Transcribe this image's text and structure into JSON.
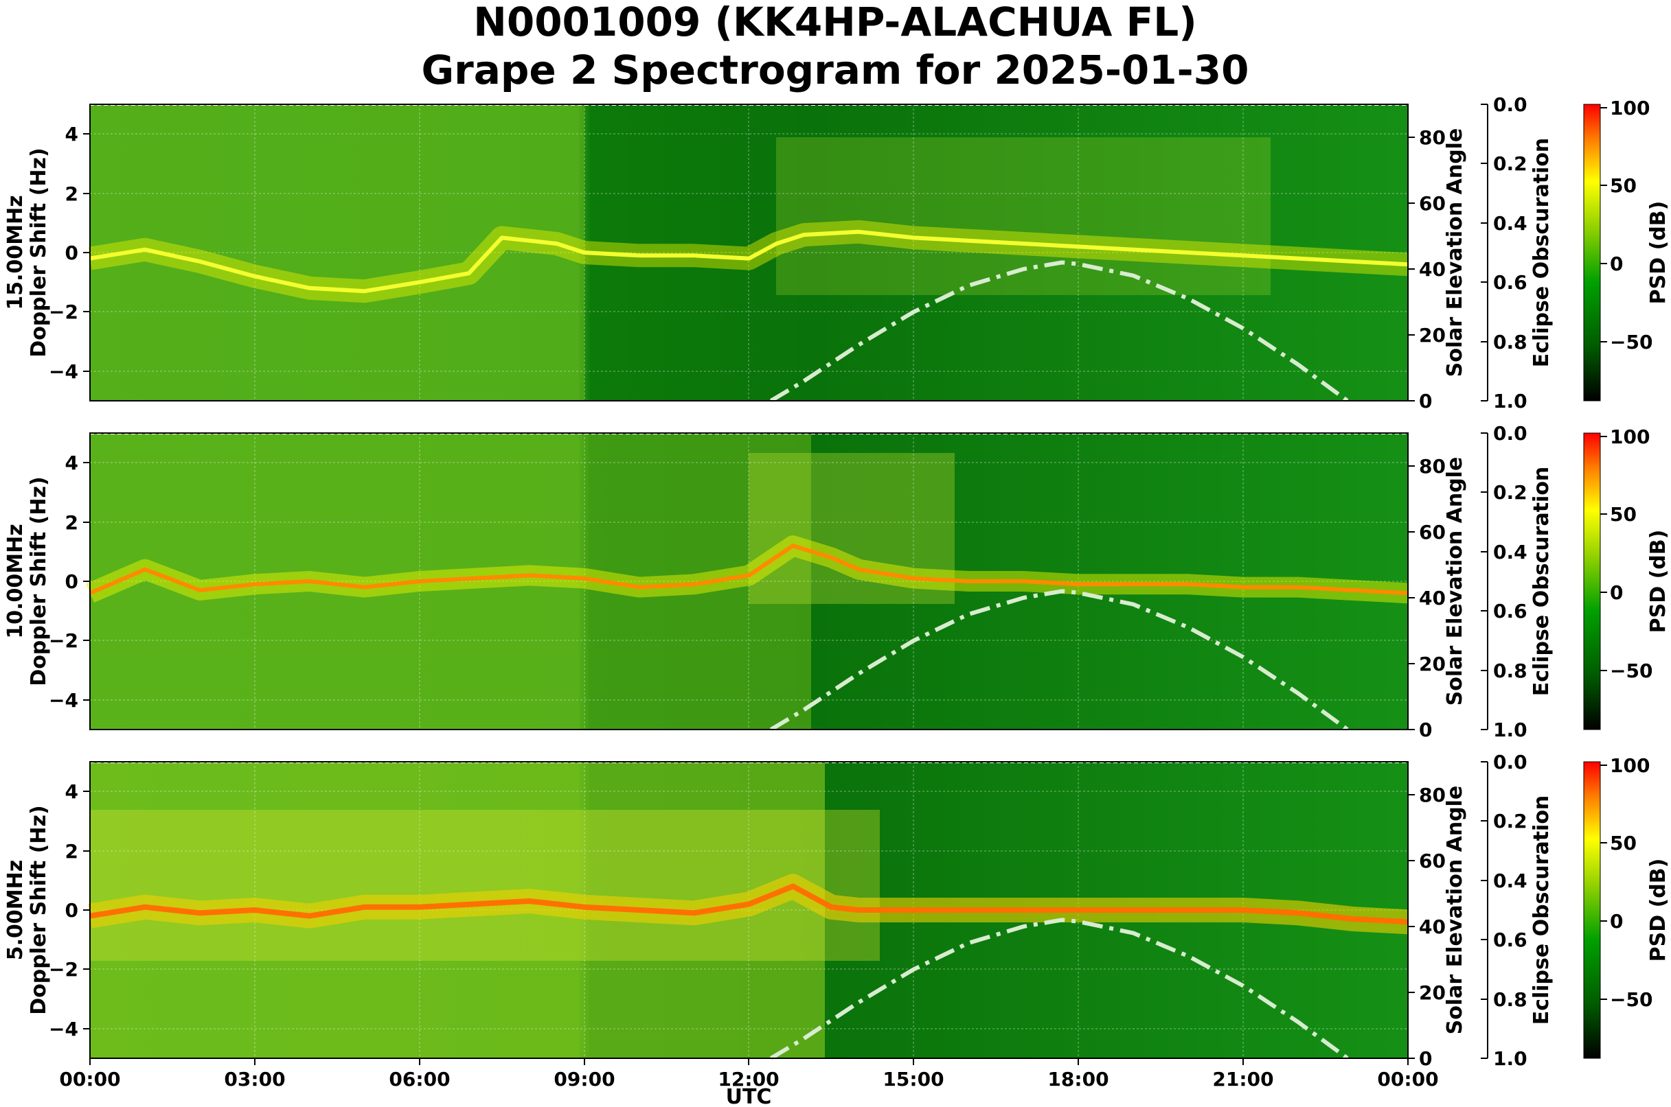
{
  "title_line1": "N0001009 (KK4HP-ALACHUA FL)",
  "title_line2": "Grape 2 Spectrogram for 2025-01-30",
  "chart_data": {
    "type": "heatmap",
    "xlabel": "UTC",
    "x_ticks": [
      "00:00",
      "03:00",
      "06:00",
      "09:00",
      "12:00",
      "15:00",
      "18:00",
      "21:00",
      "00:00"
    ],
    "x_range_hours": [
      0,
      24
    ],
    "ylabel": "Doppler Shift (Hz)",
    "ylim": [
      -5,
      5
    ],
    "y_ticks": [
      "4",
      "2",
      "0",
      "−2",
      "−4"
    ],
    "y_tick_values": [
      4,
      2,
      0,
      -2,
      -4
    ],
    "right_axis_label": "Solar Elevation Angle",
    "right_axis_range": [
      0,
      90
    ],
    "right_ticks": [
      "80",
      "60",
      "40",
      "20",
      "0"
    ],
    "right_tick_values": [
      80,
      60,
      40,
      20,
      0
    ],
    "eclipse_axis_label": "Eclipse Obscuration",
    "eclipse_range": [
      0.0,
      1.0
    ],
    "eclipse_ticks": [
      "0.0",
      "0.2",
      "0.4",
      "0.6",
      "0.8",
      "1.0"
    ],
    "eclipse_tick_values": [
      0.0,
      0.2,
      0.4,
      0.6,
      0.8,
      1.0
    ],
    "colorbar_label": "PSD (dB)",
    "colorbar_range": [
      -90,
      100
    ],
    "colorbar_ticks": [
      "100",
      "50",
      "0",
      "−50"
    ],
    "colorbar_tick_values": [
      100,
      50,
      0,
      -50
    ],
    "colormap": [
      "#000000",
      "#006400",
      "#00a000",
      "#8fd000",
      "#ffff00",
      "#ff8000",
      "#ff0000"
    ],
    "solar_elevation_curve": {
      "hours": [
        12.4,
        13,
        14,
        15,
        16,
        17,
        17.7,
        18,
        19,
        20,
        21,
        22,
        22.9
      ],
      "degrees": [
        0,
        6,
        17,
        27,
        35,
        40,
        42,
        41.5,
        38,
        31,
        22,
        11,
        0
      ],
      "color": "#d8ecd0"
    },
    "panels": [
      {
        "label": "15.00MHz",
        "ridge_hours": [
          0,
          1,
          2,
          3,
          4,
          5,
          6,
          6.9,
          7.5,
          8,
          8.5,
          9,
          10,
          11,
          12,
          12.5,
          13,
          14,
          15,
          16,
          17,
          18,
          19,
          20,
          21,
          22,
          23,
          24
        ],
        "ridge_doppler": [
          -0.2,
          0.1,
          -0.3,
          -0.8,
          -1.2,
          -1.3,
          -1.0,
          -0.7,
          0.5,
          0.4,
          0.3,
          0.0,
          -0.1,
          -0.1,
          -0.2,
          0.3,
          0.6,
          0.7,
          0.5,
          0.4,
          0.3,
          0.2,
          0.1,
          0.0,
          -0.1,
          -0.2,
          -0.3,
          -0.4
        ]
      },
      {
        "label": "10.00MHz",
        "ridge_hours": [
          0,
          1,
          2,
          3,
          4,
          5,
          6,
          7,
          8,
          9,
          10,
          11,
          12,
          12.8,
          13.5,
          14,
          15,
          16,
          17,
          18,
          19,
          20,
          21,
          22,
          23,
          24
        ],
        "ridge_doppler": [
          -0.4,
          0.4,
          -0.3,
          -0.1,
          0.0,
          -0.2,
          0.0,
          0.1,
          0.2,
          0.1,
          -0.2,
          -0.1,
          0.2,
          1.2,
          0.8,
          0.4,
          0.1,
          0.0,
          0.0,
          -0.1,
          -0.1,
          -0.1,
          -0.2,
          -0.2,
          -0.3,
          -0.4
        ]
      },
      {
        "label": "5.00MHz",
        "ridge_hours": [
          0,
          1,
          2,
          3,
          4,
          5,
          6,
          7,
          8,
          9,
          10,
          11,
          12,
          12.8,
          13.5,
          14,
          15,
          16,
          17,
          18,
          19,
          20,
          21,
          22,
          23,
          24
        ],
        "ridge_doppler": [
          -0.2,
          0.1,
          -0.1,
          0.0,
          -0.2,
          0.1,
          0.1,
          0.2,
          0.3,
          0.1,
          0.0,
          -0.1,
          0.2,
          0.8,
          0.1,
          0.0,
          0.0,
          0.0,
          0.0,
          0.0,
          0.0,
          0.0,
          0.0,
          -0.1,
          -0.3,
          -0.4
        ]
      }
    ]
  }
}
